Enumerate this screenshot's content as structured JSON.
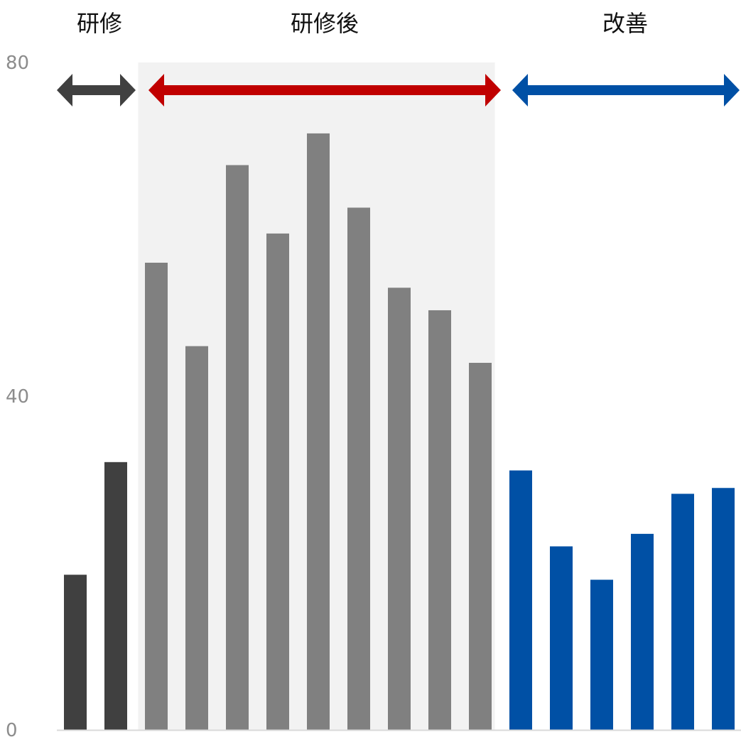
{
  "chart_data": {
    "type": "bar",
    "title": "",
    "xlabel": "",
    "ylabel": "",
    "ylim": [
      0,
      80
    ],
    "yticks": [
      0,
      40,
      80
    ],
    "grid": false,
    "legend": "none",
    "values": [
      18.6,
      32.1,
      56.0,
      46.0,
      67.7,
      59.5,
      71.5,
      62.6,
      53.0,
      50.3,
      44.0,
      31.1,
      22.0,
      18.0,
      23.5,
      28.3,
      29.0
    ],
    "phase_of_bar": [
      0,
      0,
      1,
      1,
      1,
      1,
      1,
      1,
      1,
      1,
      1,
      2,
      2,
      2,
      2,
      2,
      2
    ],
    "phases": [
      {
        "label": "研修",
        "color": "#404040",
        "arrow_color": "#404040",
        "shaded": false,
        "first_bar": 0,
        "last_bar": 1
      },
      {
        "label": "研修後",
        "color": "#808080",
        "arrow_color": "#c00000",
        "shaded": true,
        "shade_color": "#f2f2f2",
        "first_bar": 2,
        "last_bar": 10
      },
      {
        "label": "改善",
        "color": "#0050a5",
        "arrow_color": "#0050a5",
        "shaded": false,
        "first_bar": 11,
        "last_bar": 16
      }
    ],
    "axis_color": "#d9d9d9"
  }
}
